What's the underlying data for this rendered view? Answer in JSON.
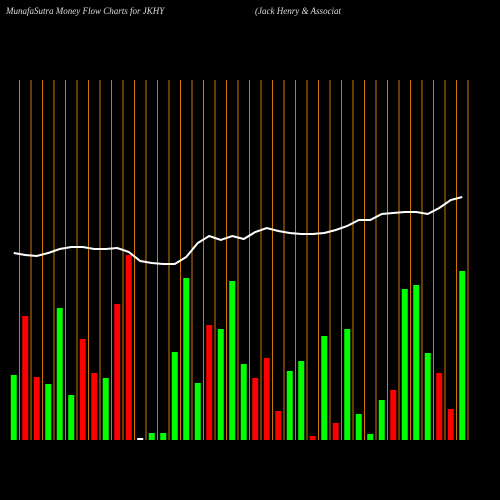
{
  "chart_data": {
    "type": "bar",
    "title": "MunafaSutra  Money Flow  Charts for JKHY",
    "subtitle": "(Jack Henry & Associat",
    "values": [
      65,
      124,
      63,
      56,
      132,
      45,
      101,
      67,
      62,
      136,
      185,
      2,
      7,
      7,
      88,
      162,
      57,
      115,
      111,
      159,
      76,
      62,
      82,
      29,
      69,
      79,
      4,
      104,
      17,
      111,
      26,
      6,
      40,
      50,
      151,
      155,
      87,
      67,
      31,
      169
    ],
    "colors": [
      "#00ff00",
      "#ff0000",
      "#ff0000",
      "#00ff00",
      "#00ff00",
      "#00ff00",
      "#ff0000",
      "#ff0000",
      "#00ff00",
      "#ff0000",
      "#ff0000",
      "#ffffff",
      "#00ff00",
      "#00ff00",
      "#00ff00",
      "#00ff00",
      "#00ff00",
      "#ff0000",
      "#00ff00",
      "#00ff00",
      "#00ff00",
      "#ff0000",
      "#ff0000",
      "#ff0000",
      "#00ff00",
      "#00ff00",
      "#ff0000",
      "#00ff00",
      "#ff0000",
      "#00ff00",
      "#00ff00",
      "#00ff00",
      "#00ff00",
      "#ff0000",
      "#00ff00",
      "#00ff00",
      "#00ff00",
      "#ff0000",
      "#ff0000",
      "#00ff00"
    ],
    "line": {
      "color": "#ffffff",
      "values": [
        187,
        185,
        184,
        187,
        191,
        193,
        193,
        191,
        191,
        192,
        188,
        179,
        177,
        176,
        176,
        183,
        197,
        204,
        200,
        204,
        201,
        208,
        212,
        209,
        207,
        206,
        206,
        207,
        210,
        214,
        220,
        220,
        226,
        227,
        228,
        228,
        226,
        232,
        240,
        243
      ]
    },
    "ylim": [
      0,
      360
    ],
    "grid_color": "#cc7700"
  }
}
